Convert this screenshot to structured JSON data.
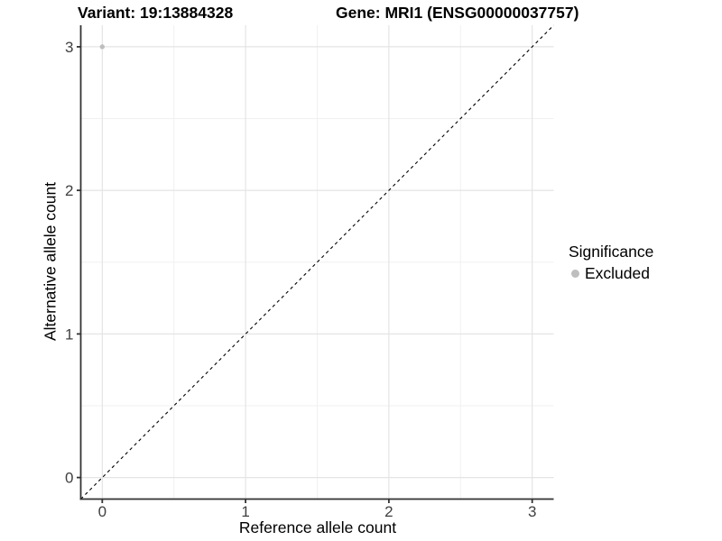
{
  "chart_data": {
    "type": "scatter",
    "title_parts": {
      "variant": "Variant: 19:13884328",
      "gene": "Gene: MRI1 (ENSG00000037757)"
    },
    "xlabel": "Reference allele count",
    "ylabel": "Alternative allele count",
    "xlim": [
      -0.15,
      3.15
    ],
    "ylim": [
      -0.15,
      3.15
    ],
    "xticks": [
      0,
      1,
      2,
      3
    ],
    "yticks": [
      0,
      1,
      2,
      3
    ],
    "xminor": [
      0.5,
      1.5,
      2.5
    ],
    "yminor": [
      0.5,
      1.5,
      2.5
    ],
    "grid": true,
    "points": [
      {
        "x": 0,
        "y": 3,
        "series": "Excluded"
      }
    ],
    "reference_line": {
      "slope": 1,
      "intercept": 0,
      "style": "dashed"
    },
    "legend": {
      "position": "right",
      "title": "Significance",
      "items": [
        {
          "label": "Excluded",
          "color": "#bebebe"
        }
      ]
    },
    "colors": {
      "point": "#bebebe",
      "grid_major": "#e4e4e4",
      "grid_minor": "#f0f0f0",
      "axis": "#333333",
      "tick_label": "#404040",
      "reference_line": "#000000"
    }
  }
}
